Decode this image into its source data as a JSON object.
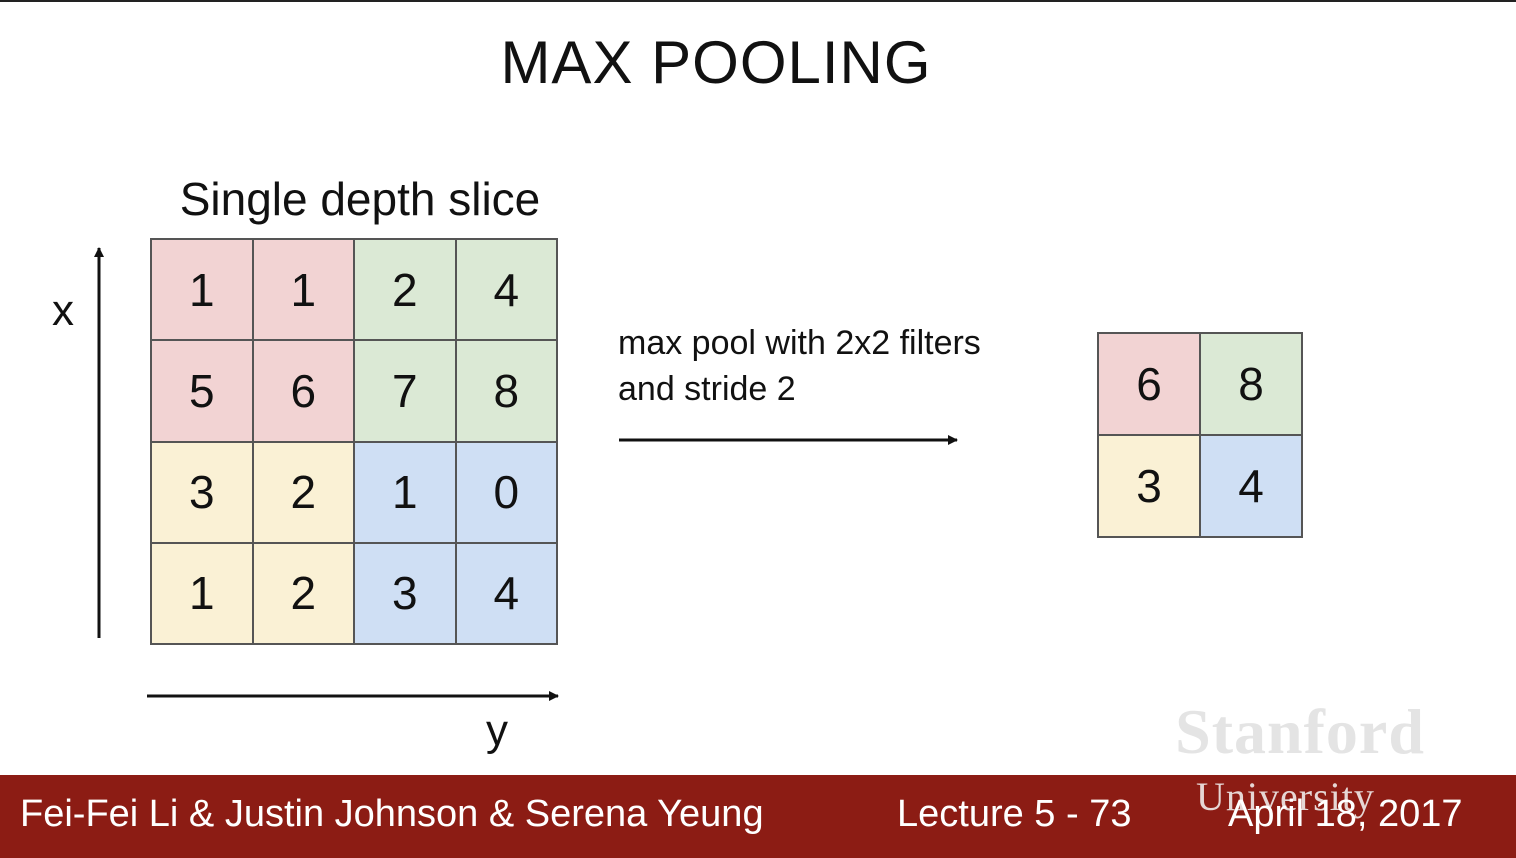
{
  "title": "MAX POOLING",
  "subtitle": "Single depth slice",
  "axes": {
    "x_label": "x",
    "y_label": "y"
  },
  "input_grid": {
    "rows": [
      [
        "1",
        "1",
        "2",
        "4"
      ],
      [
        "5",
        "6",
        "7",
        "8"
      ],
      [
        "3",
        "2",
        "1",
        "0"
      ],
      [
        "1",
        "2",
        "3",
        "4"
      ]
    ]
  },
  "operation": {
    "line1": "max pool with 2x2 filters",
    "line2": "and stride 2"
  },
  "output_grid": {
    "rows": [
      [
        "6",
        "8"
      ],
      [
        "3",
        "4"
      ]
    ]
  },
  "colors": {
    "top_left": "#f2d3d3",
    "top_right": "#dbe9d5",
    "bottom_left": "#faf1d5",
    "bottom_right": "#cfdff4",
    "footer": "#8c1c14"
  },
  "watermark": {
    "line1": "Stanford",
    "line2": "University"
  },
  "footer": {
    "authors": "Fei-Fei Li & Justin Johnson & Serena Yeung",
    "lecture": "Lecture 5 - 73",
    "date": "April 18, 2017"
  }
}
